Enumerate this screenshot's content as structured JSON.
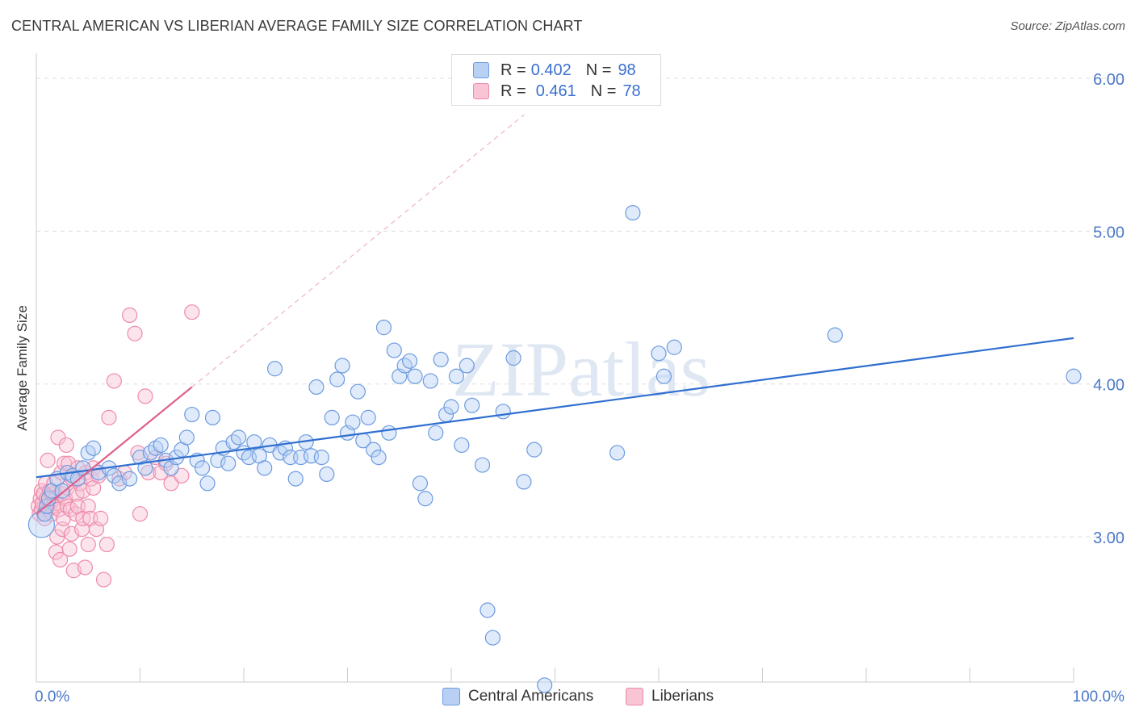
{
  "title": "CENTRAL AMERICAN VS LIBERIAN AVERAGE FAMILY SIZE CORRELATION CHART",
  "source": "Source: ZipAtlas.com",
  "watermark": "ZIPatlas",
  "legend": {
    "rows": [
      {
        "r_label": "R =",
        "r_value": "0.402",
        "n_label": "N =",
        "n_value": "98"
      },
      {
        "r_label": "R =",
        "r_value": "0.461",
        "n_label": "N =",
        "n_value": "78"
      }
    ]
  },
  "bottom_legend": [
    "Central Americans",
    "Liberians"
  ],
  "colors": {
    "blue_fill": "#b8d0f3",
    "blue_stroke": "#6d9be0",
    "blue_line": "#2f6fd0",
    "pink_fill": "#f9c4d4",
    "pink_stroke": "#ee8aab",
    "pink_line": "#e0608a",
    "grid": "#dddddd",
    "axis_label": "#4a78c8"
  },
  "chart_data": {
    "type": "scatter",
    "title": "CENTRAL AMERICAN VS LIBERIAN AVERAGE FAMILY SIZE CORRELATION CHART",
    "xlabel": "",
    "ylabel": "Average Family Size",
    "xlim": [
      0,
      100
    ],
    "ylim": [
      2.05,
      6.1
    ],
    "x_tick_labels": [
      "0.0%",
      "100.0%"
    ],
    "y_ticks": [
      3.0,
      4.0,
      5.0,
      6.0
    ],
    "y_tick_labels": [
      "3.00",
      "4.00",
      "5.00",
      "6.00"
    ],
    "series": [
      {
        "name": "Central Americans",
        "r": 0.402,
        "n": 98,
        "trend": {
          "x": [
            0,
            100
          ],
          "y": [
            3.39,
            4.3
          ]
        },
        "points": [
          [
            0.5,
            3.08
          ],
          [
            0.8,
            3.15
          ],
          [
            1.0,
            3.2
          ],
          [
            1.2,
            3.25
          ],
          [
            1.5,
            3.3
          ],
          [
            2.0,
            3.38
          ],
          [
            2.5,
            3.3
          ],
          [
            3.0,
            3.42
          ],
          [
            3.5,
            3.4
          ],
          [
            4.0,
            3.38
          ],
          [
            4.5,
            3.45
          ],
          [
            5.0,
            3.55
          ],
          [
            5.5,
            3.58
          ],
          [
            6.0,
            3.42
          ],
          [
            7.0,
            3.45
          ],
          [
            7.5,
            3.4
          ],
          [
            8.0,
            3.35
          ],
          [
            9.0,
            3.38
          ],
          [
            10.0,
            3.52
          ],
          [
            10.5,
            3.45
          ],
          [
            11.0,
            3.55
          ],
          [
            11.5,
            3.58
          ],
          [
            12.0,
            3.6
          ],
          [
            12.5,
            3.5
          ],
          [
            13.0,
            3.45
          ],
          [
            13.5,
            3.52
          ],
          [
            14.0,
            3.57
          ],
          [
            14.5,
            3.65
          ],
          [
            15.0,
            3.8
          ],
          [
            15.5,
            3.5
          ],
          [
            16.0,
            3.45
          ],
          [
            16.5,
            3.35
          ],
          [
            17.0,
            3.78
          ],
          [
            17.5,
            3.5
          ],
          [
            18.0,
            3.58
          ],
          [
            18.5,
            3.48
          ],
          [
            19.0,
            3.62
          ],
          [
            19.5,
            3.65
          ],
          [
            20.0,
            3.55
          ],
          [
            20.5,
            3.52
          ],
          [
            21.0,
            3.62
          ],
          [
            21.5,
            3.53
          ],
          [
            22.0,
            3.45
          ],
          [
            22.5,
            3.6
          ],
          [
            23.0,
            4.1
          ],
          [
            23.5,
            3.55
          ],
          [
            24.0,
            3.58
          ],
          [
            24.5,
            3.52
          ],
          [
            25.0,
            3.38
          ],
          [
            25.5,
            3.52
          ],
          [
            26.0,
            3.62
          ],
          [
            26.5,
            3.53
          ],
          [
            27.0,
            3.98
          ],
          [
            27.5,
            3.52
          ],
          [
            28.0,
            3.41
          ],
          [
            28.5,
            3.78
          ],
          [
            29.0,
            4.03
          ],
          [
            29.5,
            4.12
          ],
          [
            30.0,
            3.68
          ],
          [
            30.5,
            3.75
          ],
          [
            31.0,
            3.95
          ],
          [
            31.5,
            3.63
          ],
          [
            32.0,
            3.78
          ],
          [
            32.5,
            3.57
          ],
          [
            33.0,
            3.52
          ],
          [
            33.5,
            4.37
          ],
          [
            34.0,
            3.68
          ],
          [
            34.5,
            4.22
          ],
          [
            35.0,
            4.05
          ],
          [
            35.5,
            4.12
          ],
          [
            36.0,
            4.15
          ],
          [
            36.5,
            4.05
          ],
          [
            37.0,
            3.35
          ],
          [
            37.5,
            3.25
          ],
          [
            38.0,
            4.02
          ],
          [
            38.5,
            3.68
          ],
          [
            39.0,
            4.16
          ],
          [
            39.5,
            3.8
          ],
          [
            40.0,
            3.85
          ],
          [
            40.5,
            4.05
          ],
          [
            41.0,
            3.6
          ],
          [
            41.5,
            4.12
          ],
          [
            42.0,
            3.86
          ],
          [
            43.0,
            3.47
          ],
          [
            43.5,
            2.52
          ],
          [
            44.0,
            2.34
          ],
          [
            45.0,
            3.82
          ],
          [
            46.0,
            4.17
          ],
          [
            47.0,
            3.36
          ],
          [
            48.0,
            3.57
          ],
          [
            49.0,
            2.03
          ],
          [
            56.0,
            3.55
          ],
          [
            57.5,
            5.12
          ],
          [
            60.0,
            4.2
          ],
          [
            60.5,
            4.05
          ],
          [
            61.5,
            4.24
          ],
          [
            77.0,
            4.32
          ],
          [
            100.0,
            4.05
          ]
        ]
      },
      {
        "name": "Liberians",
        "r": 0.461,
        "n": 78,
        "trend": {
          "x": [
            0,
            15
          ],
          "y": [
            3.15,
            3.98
          ]
        },
        "trend_extension": {
          "x": [
            15,
            47
          ],
          "y": [
            3.98,
            5.76
          ]
        },
        "points": [
          [
            0.2,
            3.2
          ],
          [
            0.3,
            3.15
          ],
          [
            0.4,
            3.25
          ],
          [
            0.5,
            3.3
          ],
          [
            0.5,
            3.18
          ],
          [
            0.6,
            3.22
          ],
          [
            0.7,
            3.28
          ],
          [
            0.8,
            3.12
          ],
          [
            0.9,
            3.35
          ],
          [
            1.0,
            3.2
          ],
          [
            1.0,
            3.25
          ],
          [
            1.1,
            3.5
          ],
          [
            1.2,
            3.18
          ],
          [
            1.3,
            3.3
          ],
          [
            1.4,
            3.22
          ],
          [
            1.5,
            3.28
          ],
          [
            1.5,
            3.15
          ],
          [
            1.6,
            3.2
          ],
          [
            1.7,
            3.35
          ],
          [
            1.8,
            3.25
          ],
          [
            1.9,
            2.9
          ],
          [
            2.0,
            3.0
          ],
          [
            2.0,
            3.22
          ],
          [
            2.1,
            3.65
          ],
          [
            2.2,
            3.18
          ],
          [
            2.3,
            2.85
          ],
          [
            2.4,
            3.42
          ],
          [
            2.5,
            3.28
          ],
          [
            2.5,
            3.05
          ],
          [
            2.6,
            3.12
          ],
          [
            2.7,
            3.48
          ],
          [
            2.8,
            3.25
          ],
          [
            2.9,
            3.6
          ],
          [
            3.0,
            3.2
          ],
          [
            3.0,
            3.32
          ],
          [
            3.1,
            3.48
          ],
          [
            3.2,
            2.92
          ],
          [
            3.3,
            3.18
          ],
          [
            3.4,
            3.02
          ],
          [
            3.5,
            3.38
          ],
          [
            3.6,
            2.78
          ],
          [
            3.8,
            3.15
          ],
          [
            3.9,
            3.28
          ],
          [
            4.0,
            3.45
          ],
          [
            4.0,
            3.2
          ],
          [
            4.2,
            3.35
          ],
          [
            4.4,
            3.05
          ],
          [
            4.5,
            3.12
          ],
          [
            4.5,
            3.3
          ],
          [
            4.7,
            2.8
          ],
          [
            4.8,
            3.42
          ],
          [
            5.0,
            3.2
          ],
          [
            5.0,
            2.95
          ],
          [
            5.2,
            3.12
          ],
          [
            5.3,
            3.38
          ],
          [
            5.5,
            3.45
          ],
          [
            5.5,
            3.32
          ],
          [
            5.8,
            3.05
          ],
          [
            6.0,
            3.4
          ],
          [
            6.2,
            3.12
          ],
          [
            6.5,
            2.72
          ],
          [
            6.8,
            2.95
          ],
          [
            7.0,
            3.78
          ],
          [
            7.5,
            4.02
          ],
          [
            8.0,
            3.38
          ],
          [
            8.5,
            3.42
          ],
          [
            9.0,
            4.45
          ],
          [
            9.5,
            4.33
          ],
          [
            9.8,
            3.55
          ],
          [
            10.0,
            3.15
          ],
          [
            10.5,
            3.92
          ],
          [
            10.8,
            3.42
          ],
          [
            11.5,
            3.52
          ],
          [
            12.0,
            3.42
          ],
          [
            12.5,
            3.48
          ],
          [
            13.0,
            3.35
          ],
          [
            14.0,
            3.4
          ],
          [
            15.0,
            4.47
          ]
        ]
      }
    ]
  }
}
